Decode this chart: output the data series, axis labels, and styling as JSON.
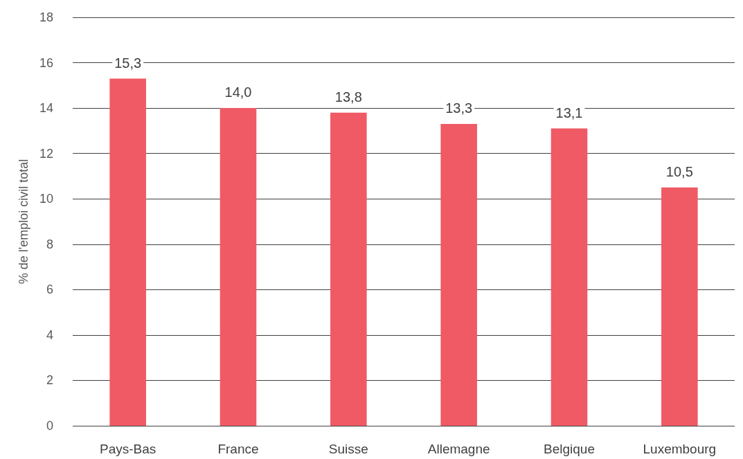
{
  "chart_data": {
    "type": "bar",
    "ylabel": "% de l'emploi civil total",
    "categories": [
      "Pays-Bas",
      "France",
      "Suisse",
      "Allemagne",
      "Belgique",
      "Luxembourg"
    ],
    "values": [
      15.3,
      14.0,
      13.8,
      13.3,
      13.1,
      10.5
    ],
    "value_labels": [
      "15,3",
      "14,0",
      "13,8",
      "13,3",
      "13,1",
      "10,5"
    ],
    "color": "#f05a64",
    "ylim": [
      0,
      18
    ],
    "yticks": [
      0,
      2,
      4,
      6,
      8,
      10,
      12,
      14,
      16,
      18
    ],
    "grid": "y"
  }
}
